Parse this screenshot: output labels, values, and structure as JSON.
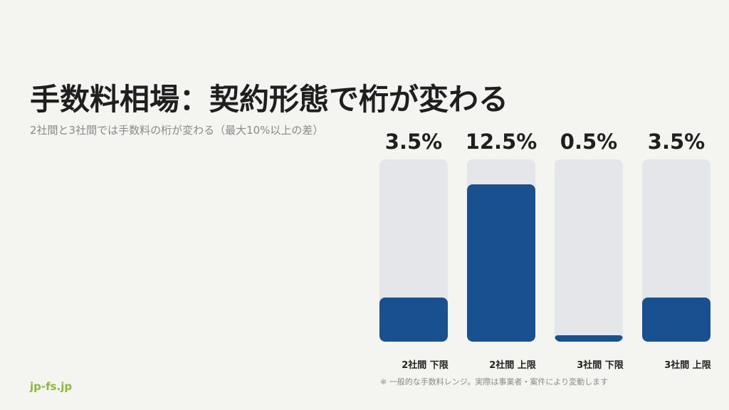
{
  "title": "手数料相場：契約形態で桁が変わる",
  "subtitle": "2社間と3社間では手数料の桁が変わる（最大10%以上の差）",
  "note": "※ 一般的な手数料レンジ。実際は事業者・案件により変動します",
  "brand": "jp-fs.jp",
  "colors": {
    "fill": "#19508f",
    "track": "#e5e6ea",
    "brand": "#8cb83c"
  },
  "chart_data": {
    "type": "bar",
    "categories": [
      "2社間 下限",
      "2社間 上限",
      "3社間 下限",
      "3社間 上限"
    ],
    "values": [
      3.5,
      12.5,
      0.5,
      3.5
    ],
    "value_labels": [
      "3.5%",
      "12.5%",
      "0.5%",
      "3.5%"
    ],
    "ylim": [
      0,
      14.5
    ],
    "grid": false
  }
}
